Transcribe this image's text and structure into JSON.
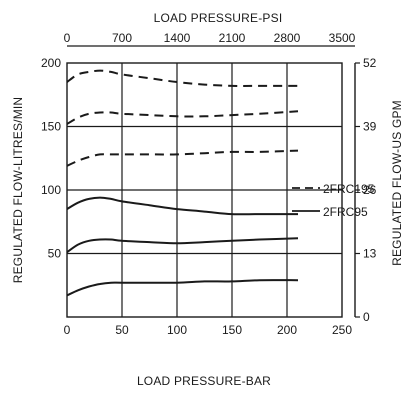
{
  "chart_data": {
    "type": "line",
    "x_bottom": {
      "label": "LOAD PRESSURE-BAR",
      "range": [
        0,
        250
      ],
      "ticks": [
        "0",
        "50",
        "100",
        "150",
        "200",
        "250"
      ]
    },
    "x_top": {
      "label": "LOAD PRESSURE-PSI",
      "range": [
        0,
        3500
      ],
      "ticks": [
        "0",
        "700",
        "1400",
        "2100",
        "2800",
        "3500"
      ]
    },
    "y_left": {
      "label": "REGULATED FLOW-LITRES/MIN",
      "range": [
        0,
        200
      ],
      "ticks": [
        "0",
        "50",
        "100",
        "150",
        "200"
      ]
    },
    "y_right": {
      "label": "REGULATED FLOW-US GPM",
      "range": [
        0,
        52
      ],
      "ticks": [
        "0",
        "13",
        "26",
        "39",
        "52"
      ]
    },
    "grid": true,
    "legend": [
      {
        "label": "2FRC195",
        "style": "dashed"
      },
      {
        "label": "2FRC95",
        "style": "solid"
      }
    ],
    "series": [
      {
        "model": "2FRC195",
        "style": "dashed",
        "x": [
          0,
          10,
          20,
          30,
          40,
          50,
          75,
          100,
          125,
          150,
          175,
          210
        ],
        "y": [
          185,
          191,
          193,
          194,
          193,
          191,
          188,
          185,
          183,
          182,
          182,
          182
        ]
      },
      {
        "model": "2FRC195",
        "style": "dashed",
        "x": [
          0,
          10,
          20,
          30,
          40,
          50,
          75,
          100,
          125,
          150,
          175,
          210
        ],
        "y": [
          152,
          157,
          160,
          161,
          161,
          160,
          159,
          158,
          158,
          159,
          160,
          162
        ]
      },
      {
        "model": "2FRC195",
        "style": "dashed",
        "x": [
          0,
          10,
          20,
          30,
          40,
          50,
          75,
          100,
          125,
          150,
          175,
          210
        ],
        "y": [
          119,
          123,
          126,
          128,
          128,
          128,
          128,
          128,
          129,
          130,
          130,
          131
        ]
      },
      {
        "model": "2FRC95",
        "style": "solid",
        "x": [
          0,
          10,
          20,
          30,
          40,
          50,
          75,
          100,
          125,
          150,
          175,
          210
        ],
        "y": [
          85,
          90,
          93,
          94,
          93,
          91,
          88,
          85,
          83,
          81,
          81,
          81
        ]
      },
      {
        "model": "2FRC95",
        "style": "solid",
        "x": [
          0,
          10,
          20,
          30,
          40,
          50,
          75,
          100,
          125,
          150,
          175,
          210
        ],
        "y": [
          51,
          57,
          60,
          61,
          61,
          60,
          59,
          58,
          59,
          60,
          61,
          62
        ]
      },
      {
        "model": "2FRC95",
        "style": "solid",
        "x": [
          0,
          10,
          20,
          30,
          40,
          50,
          75,
          100,
          125,
          150,
          175,
          210
        ],
        "y": [
          17,
          21,
          24,
          26,
          27,
          27,
          27,
          27,
          28,
          28,
          29,
          29
        ]
      }
    ]
  },
  "colors": {
    "ink": "#1a1a1a",
    "background": "#ffffff"
  }
}
